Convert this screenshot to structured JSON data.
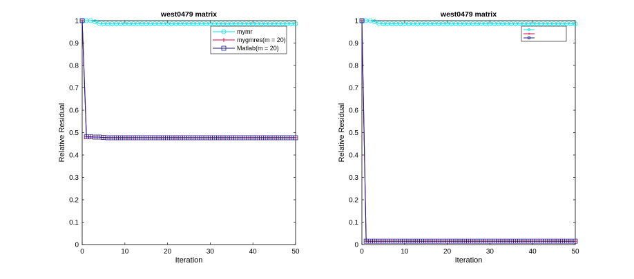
{
  "chart_data": [
    {
      "type": "line",
      "title": "west0479 matrix",
      "xlabel": "Iteration",
      "ylabel": "Relative Residual",
      "xlim": [
        0,
        50
      ],
      "ylim": [
        0,
        1
      ],
      "xticks": [
        0,
        10,
        20,
        30,
        40,
        50
      ],
      "xtick_labels": [
        "0",
        "10",
        "20",
        "30",
        "40",
        "50"
      ],
      "yticks": [
        0,
        0.1,
        0.2,
        0.3,
        0.4,
        0.5,
        0.6,
        0.7,
        0.8,
        0.9,
        1
      ],
      "ytick_labels": [
        "0",
        "0.1",
        "0.2",
        "0.3",
        "0.4",
        "0.5",
        "0.6",
        "0.7",
        "0.8",
        "0.9",
        "1"
      ],
      "grid": false,
      "legend": "top-right",
      "series": [
        {
          "name": "mymr",
          "color": "#00e5ee",
          "marker": "circle",
          "x": [
            0,
            1,
            2,
            3,
            4,
            5,
            6,
            7,
            8,
            9,
            10,
            11,
            12,
            13,
            14,
            15,
            16,
            17,
            18,
            19,
            20,
            21,
            22,
            23,
            24,
            25,
            26,
            27,
            28,
            29,
            30,
            31,
            32,
            33,
            34,
            35,
            36,
            37,
            38,
            39,
            40,
            41,
            42,
            43,
            44,
            45,
            46,
            47,
            48,
            49,
            50
          ],
          "y": [
            1,
            1,
            1,
            0.995,
            0.988,
            0.986,
            0.986,
            0.986,
            0.986,
            0.986,
            0.986,
            0.986,
            0.986,
            0.986,
            0.986,
            0.986,
            0.986,
            0.986,
            0.986,
            0.986,
            0.986,
            0.986,
            0.986,
            0.986,
            0.986,
            0.986,
            0.986,
            0.986,
            0.986,
            0.986,
            0.986,
            0.986,
            0.986,
            0.986,
            0.986,
            0.986,
            0.986,
            0.986,
            0.986,
            0.986,
            0.986,
            0.986,
            0.986,
            0.986,
            0.986,
            0.986,
            0.986,
            0.986,
            0.986,
            0.986,
            0.986
          ]
        },
        {
          "name": "mygmres(m = 20)",
          "color": "#e0003c",
          "marker": "plus",
          "x": [
            0,
            1,
            2,
            3,
            4,
            5,
            6,
            7,
            8,
            9,
            10,
            11,
            12,
            13,
            14,
            15,
            16,
            17,
            18,
            19,
            20,
            21,
            22,
            23,
            24,
            25,
            26,
            27,
            28,
            29,
            30,
            31,
            32,
            33,
            34,
            35,
            36,
            37,
            38,
            39,
            40,
            41,
            42,
            43,
            44,
            45,
            46,
            47,
            48,
            49,
            50
          ],
          "y": [
            1,
            0.481,
            0.481,
            0.48,
            0.48,
            0.478,
            0.477,
            0.477,
            0.477,
            0.477,
            0.477,
            0.477,
            0.477,
            0.477,
            0.477,
            0.477,
            0.477,
            0.477,
            0.477,
            0.477,
            0.477,
            0.477,
            0.477,
            0.477,
            0.477,
            0.477,
            0.477,
            0.477,
            0.477,
            0.477,
            0.477,
            0.477,
            0.477,
            0.477,
            0.477,
            0.477,
            0.477,
            0.477,
            0.477,
            0.477,
            0.477,
            0.477,
            0.477,
            0.477,
            0.477,
            0.477,
            0.477,
            0.477,
            0.477,
            0.477,
            0.477
          ]
        },
        {
          "name": "Matlab(m = 20)",
          "color": "#1a1a8c",
          "marker": "square",
          "x": [
            0,
            1,
            2,
            3,
            4,
            5,
            6,
            7,
            8,
            9,
            10,
            11,
            12,
            13,
            14,
            15,
            16,
            17,
            18,
            19,
            20,
            21,
            22,
            23,
            24,
            25,
            26,
            27,
            28,
            29,
            30,
            31,
            32,
            33,
            34,
            35,
            36,
            37,
            38,
            39,
            40,
            41,
            42,
            43,
            44,
            45,
            46,
            47,
            48,
            49,
            50
          ],
          "y": [
            1,
            0.481,
            0.481,
            0.48,
            0.48,
            0.478,
            0.477,
            0.477,
            0.477,
            0.477,
            0.477,
            0.477,
            0.477,
            0.477,
            0.477,
            0.477,
            0.477,
            0.477,
            0.477,
            0.477,
            0.477,
            0.477,
            0.477,
            0.477,
            0.477,
            0.477,
            0.477,
            0.477,
            0.477,
            0.477,
            0.477,
            0.477,
            0.477,
            0.477,
            0.477,
            0.477,
            0.477,
            0.477,
            0.477,
            0.477,
            0.477,
            0.477,
            0.477,
            0.477,
            0.477,
            0.477,
            0.477,
            0.477,
            0.477,
            0.477,
            0.477
          ]
        }
      ]
    },
    {
      "type": "line",
      "title": "west0479 matrix",
      "xlabel": "Iteration",
      "ylabel": "Relative Residual",
      "xlim": [
        0,
        50
      ],
      "ylim": [
        0,
        1
      ],
      "xticks": [
        0,
        10,
        20,
        30,
        40,
        50
      ],
      "xtick_labels": [
        "0",
        "10",
        "20",
        "30",
        "40",
        "50"
      ],
      "yticks": [
        0,
        0.1,
        0.2,
        0.3,
        0.4,
        0.5,
        0.6,
        0.7,
        0.8,
        0.9,
        1
      ],
      "ytick_labels": [
        "0",
        "0.1",
        "0.2",
        "0.3",
        "0.4",
        "0.5",
        "0.6",
        "0.7",
        "0.8",
        "0.9",
        "1"
      ],
      "grid": false,
      "legend": "top-right",
      "legend_size": "tiny",
      "series": [
        {
          "name": "",
          "color": "#00e5ee",
          "marker": "circle",
          "x": [
            0,
            1,
            2,
            3,
            4,
            5,
            6,
            7,
            8,
            9,
            10,
            11,
            12,
            13,
            14,
            15,
            16,
            17,
            18,
            19,
            20,
            21,
            22,
            23,
            24,
            25,
            26,
            27,
            28,
            29,
            30,
            31,
            32,
            33,
            34,
            35,
            36,
            37,
            38,
            39,
            40,
            41,
            42,
            43,
            44,
            45,
            46,
            47,
            48,
            49,
            50
          ],
          "y": [
            1,
            1,
            1,
            0.995,
            0.988,
            0.986,
            0.986,
            0.986,
            0.986,
            0.986,
            0.986,
            0.986,
            0.986,
            0.986,
            0.986,
            0.986,
            0.986,
            0.986,
            0.986,
            0.986,
            0.986,
            0.986,
            0.986,
            0.986,
            0.986,
            0.986,
            0.986,
            0.986,
            0.986,
            0.986,
            0.986,
            0.986,
            0.986,
            0.986,
            0.986,
            0.986,
            0.986,
            0.986,
            0.986,
            0.986,
            0.986,
            0.986,
            0.986,
            0.986,
            0.986,
            0.986,
            0.986,
            0.986,
            0.986,
            0.986,
            0.986
          ]
        },
        {
          "name": "",
          "color": "#e0003c",
          "marker": "plus",
          "x": [
            0,
            1,
            2,
            3,
            4,
            5,
            6,
            7,
            8,
            9,
            10,
            11,
            12,
            13,
            14,
            15,
            16,
            17,
            18,
            19,
            20,
            21,
            22,
            23,
            24,
            25,
            26,
            27,
            28,
            29,
            30,
            31,
            32,
            33,
            34,
            35,
            36,
            37,
            38,
            39,
            40,
            41,
            42,
            43,
            44,
            45,
            46,
            47,
            48,
            49,
            50
          ],
          "y": [
            1,
            0.015,
            0.015,
            0.015,
            0.015,
            0.015,
            0.015,
            0.015,
            0.015,
            0.015,
            0.015,
            0.015,
            0.015,
            0.015,
            0.015,
            0.015,
            0.015,
            0.015,
            0.015,
            0.015,
            0.015,
            0.015,
            0.015,
            0.015,
            0.015,
            0.015,
            0.015,
            0.015,
            0.015,
            0.015,
            0.015,
            0.015,
            0.015,
            0.015,
            0.015,
            0.015,
            0.015,
            0.015,
            0.015,
            0.015,
            0.015,
            0.015,
            0.015,
            0.015,
            0.015,
            0.015,
            0.015,
            0.015,
            0.015,
            0.015,
            0.015
          ]
        },
        {
          "name": "",
          "color": "#1a1a8c",
          "marker": "square",
          "x": [
            0,
            1,
            2,
            3,
            4,
            5,
            6,
            7,
            8,
            9,
            10,
            11,
            12,
            13,
            14,
            15,
            16,
            17,
            18,
            19,
            20,
            21,
            22,
            23,
            24,
            25,
            26,
            27,
            28,
            29,
            30,
            31,
            32,
            33,
            34,
            35,
            36,
            37,
            38,
            39,
            40,
            41,
            42,
            43,
            44,
            45,
            46,
            47,
            48,
            49,
            50
          ],
          "y": [
            1,
            0.015,
            0.015,
            0.015,
            0.015,
            0.015,
            0.015,
            0.015,
            0.015,
            0.015,
            0.015,
            0.015,
            0.015,
            0.015,
            0.015,
            0.015,
            0.015,
            0.015,
            0.015,
            0.015,
            0.015,
            0.015,
            0.015,
            0.015,
            0.015,
            0.015,
            0.015,
            0.015,
            0.015,
            0.015,
            0.015,
            0.015,
            0.015,
            0.015,
            0.015,
            0.015,
            0.015,
            0.015,
            0.015,
            0.015,
            0.015,
            0.015,
            0.015,
            0.015,
            0.015,
            0.015,
            0.015,
            0.015,
            0.015,
            0.015,
            0.015
          ]
        }
      ]
    }
  ]
}
